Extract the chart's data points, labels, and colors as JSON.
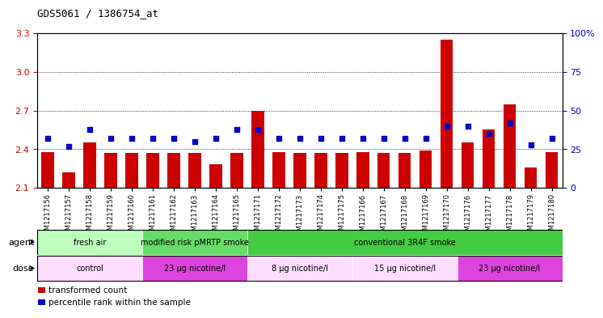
{
  "title": "GDS5061 / 1386754_at",
  "samples": [
    "GSM1217156",
    "GSM1217157",
    "GSM1217158",
    "GSM1217159",
    "GSM1217160",
    "GSM1217161",
    "GSM1217162",
    "GSM1217163",
    "GSM1217164",
    "GSM1217165",
    "GSM1217171",
    "GSM1217172",
    "GSM1217173",
    "GSM1217174",
    "GSM1217175",
    "GSM1217166",
    "GSM1217167",
    "GSM1217168",
    "GSM1217169",
    "GSM1217170",
    "GSM1217176",
    "GSM1217177",
    "GSM1217178",
    "GSM1217179",
    "GSM1217180"
  ],
  "bar_values": [
    2.38,
    2.22,
    2.45,
    2.37,
    2.37,
    2.37,
    2.37,
    2.37,
    2.28,
    2.37,
    2.7,
    2.38,
    2.37,
    2.37,
    2.37,
    2.38,
    2.37,
    2.37,
    2.39,
    3.25,
    2.45,
    2.55,
    2.75,
    2.26,
    2.38
  ],
  "percentile_values": [
    32,
    27,
    38,
    32,
    32,
    32,
    32,
    30,
    32,
    38,
    38,
    32,
    32,
    32,
    32,
    32,
    32,
    32,
    32,
    40,
    40,
    35,
    42,
    28,
    32
  ],
  "bar_color": "#cc0000",
  "dot_color": "#0000cc",
  "ylim_left": [
    2.1,
    3.3
  ],
  "yticks_left": [
    2.1,
    2.4,
    2.7,
    3.0,
    3.3
  ],
  "ylim_right": [
    0,
    100
  ],
  "yticks_right": [
    0,
    25,
    50,
    75,
    100
  ],
  "yticklabels_right": [
    "0",
    "25",
    "50",
    "75",
    "100%"
  ],
  "bar_bottom": 2.1,
  "agent_groups": [
    {
      "label": "fresh air",
      "start": 0,
      "end": 5,
      "color": "#bbffbb"
    },
    {
      "label": "modified risk pMRTP smoke",
      "start": 5,
      "end": 10,
      "color": "#66dd66"
    },
    {
      "label": "conventional 3R4F smoke",
      "start": 10,
      "end": 25,
      "color": "#44cc44"
    }
  ],
  "dose_groups": [
    {
      "label": "control",
      "start": 0,
      "end": 5,
      "color": "#ffddff"
    },
    {
      "label": "23 μg nicotine/l",
      "start": 5,
      "end": 10,
      "color": "#dd44dd"
    },
    {
      "label": "8 μg nicotine/l",
      "start": 10,
      "end": 15,
      "color": "#ffddff"
    },
    {
      "label": "15 μg nicotine/l",
      "start": 15,
      "end": 20,
      "color": "#ffddff"
    },
    {
      "label": "23 μg nicotine/l",
      "start": 20,
      "end": 25,
      "color": "#dd44dd"
    }
  ],
  "legend_items": [
    {
      "label": "transformed count",
      "color": "#cc0000"
    },
    {
      "label": "percentile rank within the sample",
      "color": "#0000cc"
    }
  ],
  "grid_color": "#000000",
  "background_color": "#ffffff"
}
